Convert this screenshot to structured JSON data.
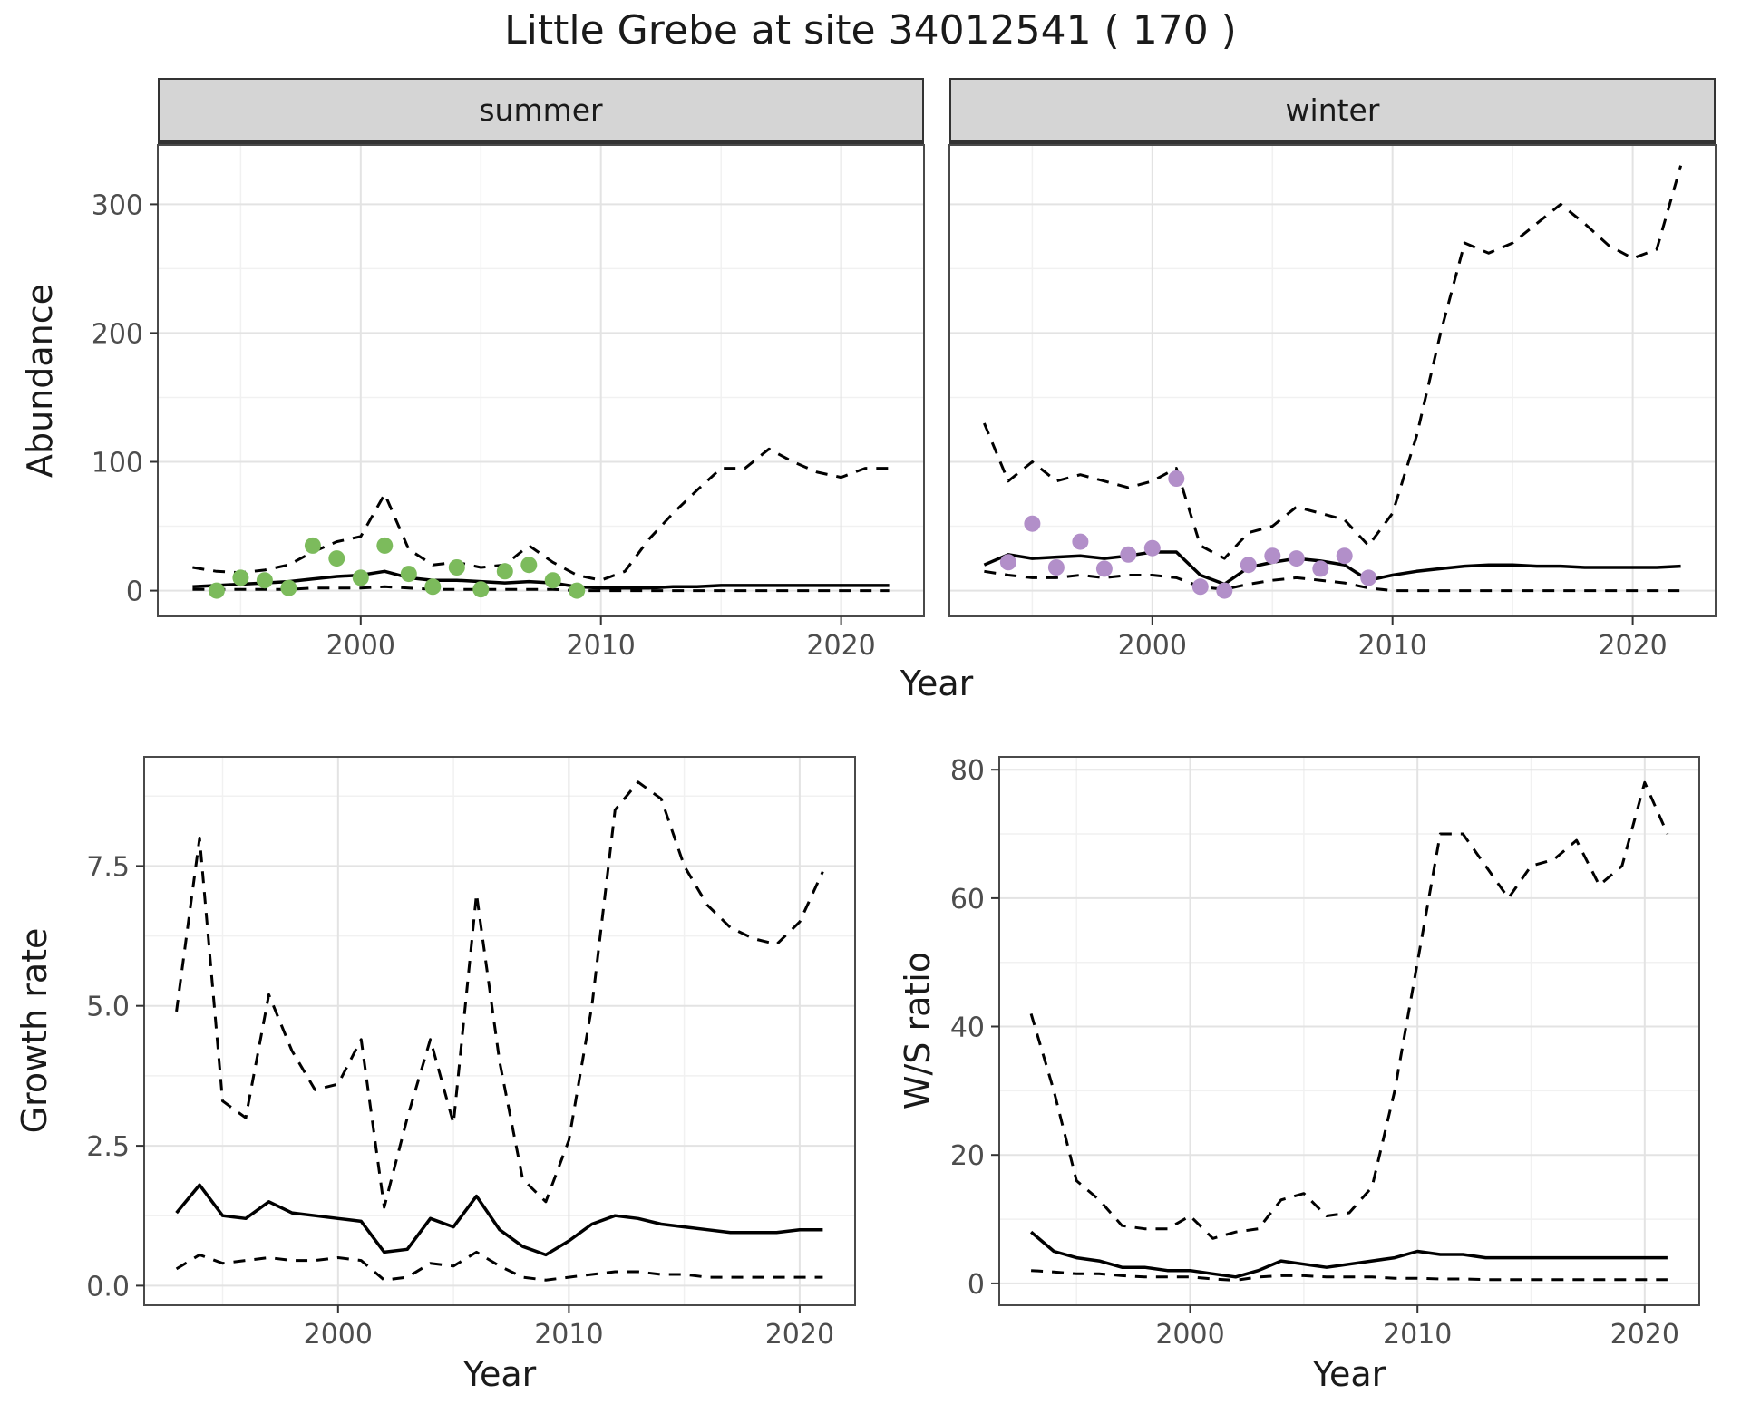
{
  "title": "Little Grebe at site 34012541 ( 170 )",
  "facets": [
    {
      "label": "summer"
    },
    {
      "label": "winter"
    }
  ],
  "axes": {
    "top_ylabel": "Abundance",
    "top_xlabel": "Year",
    "bottom_left_ylabel": "Growth rate",
    "bottom_left_xlabel": "Year",
    "bottom_right_ylabel": "W/S ratio",
    "bottom_right_xlabel": "Year"
  },
  "style": {
    "line_color": "#000000",
    "summer_point_color": "#7cbb5c",
    "winter_point_color": "#b28fc9",
    "strip_bg": "#d5d5d5",
    "grid_major": "#e3e3e3",
    "grid_minor": "#f1f1f1",
    "panel_border": "#4a4a4a",
    "tick_text": "#4d4d4d"
  },
  "chart_data": [
    {
      "id": "summer-abundance",
      "type": "line",
      "facet": "summer",
      "xlabel": "Year",
      "ylabel": "Abundance",
      "xlim": [
        1991.55,
        2023.45
      ],
      "ylim": [
        -20,
        346
      ],
      "xticks": [
        2000,
        2010,
        2020
      ],
      "xtick_labels": [
        "2000",
        "2010",
        "2020"
      ],
      "yticks": [
        0,
        100,
        200,
        300
      ],
      "ytick_labels": [
        "0",
        "100",
        "200",
        "300"
      ],
      "minor_xticks": [
        1995,
        2005,
        2015
      ],
      "minor_yticks": [
        50,
        150,
        250
      ],
      "show_y_labels": true,
      "series": [
        {
          "name": "upper-ci",
          "style": "dashed",
          "x": [
            1993,
            1994,
            1995,
            1996,
            1997,
            1998,
            1999,
            2000,
            2001,
            2002,
            2003,
            2004,
            2005,
            2006,
            2007,
            2008,
            2009,
            2010,
            2011,
            2012,
            2013,
            2014,
            2015,
            2016,
            2017,
            2018,
            2019,
            2020,
            2021,
            2022
          ],
          "y": [
            18,
            15,
            14,
            16,
            20,
            30,
            38,
            42,
            75,
            32,
            20,
            22,
            18,
            20,
            35,
            22,
            12,
            8,
            15,
            40,
            60,
            78,
            95,
            95,
            110,
            100,
            92,
            88,
            95,
            95
          ]
        },
        {
          "name": "lower-ci",
          "style": "dashed",
          "x": [
            1993,
            1994,
            1995,
            1996,
            1997,
            1998,
            1999,
            2000,
            2001,
            2002,
            2003,
            2004,
            2005,
            2006,
            2007,
            2008,
            2009,
            2010,
            2011,
            2012,
            2013,
            2014,
            2015,
            2016,
            2017,
            2018,
            2019,
            2020,
            2021,
            2022
          ],
          "y": [
            1,
            1,
            1,
            1,
            1,
            2,
            2,
            2,
            3,
            2,
            1,
            1,
            1,
            1,
            1,
            1,
            0,
            0,
            0,
            0,
            0,
            0,
            0,
            0,
            0,
            0,
            0,
            0,
            0,
            0
          ]
        },
        {
          "name": "fitted-index",
          "style": "solid",
          "x": [
            1993,
            1994,
            1995,
            1996,
            1997,
            1998,
            1999,
            2000,
            2001,
            2002,
            2003,
            2004,
            2005,
            2006,
            2007,
            2008,
            2009,
            2010,
            2011,
            2012,
            2013,
            2014,
            2015,
            2016,
            2017,
            2018,
            2019,
            2020,
            2021,
            2022
          ],
          "y": [
            3,
            4,
            5,
            6,
            7,
            9,
            11,
            12,
            15,
            10,
            8,
            8,
            7,
            6,
            7,
            6,
            3,
            2,
            2,
            2,
            3,
            3,
            4,
            4,
            4,
            4,
            4,
            4,
            4,
            4
          ]
        },
        {
          "name": "observed-counts",
          "style": "points",
          "color": "#7cbb5c",
          "x": [
            1994,
            1995,
            1996,
            1997,
            1998,
            1999,
            2000,
            2001,
            2002,
            2003,
            2004,
            2005,
            2006,
            2007,
            2008,
            2009
          ],
          "y": [
            0,
            10,
            8,
            2,
            35,
            25,
            10,
            35,
            13,
            3,
            18,
            1,
            15,
            20,
            8,
            0
          ]
        }
      ]
    },
    {
      "id": "winter-abundance",
      "type": "line",
      "facet": "winter",
      "xlabel": "Year",
      "ylabel": "Abundance",
      "xlim": [
        1991.55,
        2023.45
      ],
      "ylim": [
        -20,
        346
      ],
      "xticks": [
        2000,
        2010,
        2020
      ],
      "xtick_labels": [
        "2000",
        "2010",
        "2020"
      ],
      "yticks": [
        0,
        100,
        200,
        300
      ],
      "ytick_labels": [
        "0",
        "100",
        "200",
        "300"
      ],
      "minor_xticks": [
        1995,
        2005,
        2015
      ],
      "minor_yticks": [
        50,
        150,
        250
      ],
      "show_y_labels": false,
      "series": [
        {
          "name": "upper-ci",
          "style": "dashed",
          "x": [
            1993,
            1994,
            1995,
            1996,
            1997,
            1998,
            1999,
            2000,
            2001,
            2002,
            2003,
            2004,
            2005,
            2006,
            2007,
            2008,
            2009,
            2010,
            2011,
            2012,
            2013,
            2014,
            2015,
            2016,
            2017,
            2018,
            2019,
            2020,
            2021,
            2022
          ],
          "y": [
            130,
            85,
            100,
            85,
            90,
            85,
            80,
            85,
            95,
            35,
            25,
            45,
            50,
            65,
            60,
            55,
            35,
            60,
            120,
            200,
            270,
            262,
            270,
            285,
            300,
            285,
            268,
            258,
            265,
            330
          ]
        },
        {
          "name": "lower-ci",
          "style": "dashed",
          "x": [
            1993,
            1994,
            1995,
            1996,
            1997,
            1998,
            1999,
            2000,
            2001,
            2002,
            2003,
            2004,
            2005,
            2006,
            2007,
            2008,
            2009,
            2010,
            2011,
            2012,
            2013,
            2014,
            2015,
            2016,
            2017,
            2018,
            2019,
            2020,
            2021,
            2022
          ],
          "y": [
            15,
            12,
            10,
            10,
            12,
            10,
            12,
            12,
            10,
            3,
            1,
            5,
            8,
            10,
            8,
            6,
            2,
            0,
            0,
            0,
            0,
            0,
            0,
            0,
            0,
            0,
            0,
            0,
            0,
            0
          ]
        },
        {
          "name": "fitted-index",
          "style": "solid",
          "x": [
            1993,
            1994,
            1995,
            1996,
            1997,
            1998,
            1999,
            2000,
            2001,
            2002,
            2003,
            2004,
            2005,
            2006,
            2007,
            2008,
            2009,
            2010,
            2011,
            2012,
            2013,
            2014,
            2015,
            2016,
            2017,
            2018,
            2019,
            2020,
            2021,
            2022
          ],
          "y": [
            20,
            28,
            25,
            26,
            27,
            25,
            27,
            30,
            30,
            12,
            5,
            18,
            22,
            25,
            23,
            20,
            8,
            12,
            15,
            17,
            19,
            20,
            20,
            19,
            19,
            18,
            18,
            18,
            18,
            19
          ]
        },
        {
          "name": "observed-counts",
          "style": "points",
          "color": "#b28fc9",
          "x": [
            1994,
            1995,
            1996,
            1997,
            1998,
            1999,
            2000,
            2001,
            2002,
            2003,
            2004,
            2005,
            2006,
            2007,
            2008,
            2009
          ],
          "y": [
            22,
            52,
            18,
            38,
            17,
            28,
            33,
            87,
            3,
            0,
            20,
            27,
            25,
            17,
            27,
            10
          ]
        }
      ]
    },
    {
      "id": "growth-rate",
      "type": "line",
      "xlabel": "Year",
      "ylabel": "Growth rate",
      "xlim": [
        1991.6,
        2022.4
      ],
      "ylim": [
        -0.35,
        9.45
      ],
      "xticks": [
        2000,
        2010,
        2020
      ],
      "xtick_labels": [
        "2000",
        "2010",
        "2020"
      ],
      "yticks": [
        0,
        2.5,
        5,
        7.5
      ],
      "ytick_labels": [
        "0.0",
        "2.5",
        "5.0",
        "7.5"
      ],
      "minor_xticks": [
        1995,
        2005,
        2015
      ],
      "minor_yticks": [
        1.25,
        3.75,
        6.25,
        8.75
      ],
      "show_y_labels": true,
      "series": [
        {
          "name": "upper-ci",
          "style": "dashed",
          "x": [
            1993,
            1994,
            1995,
            1996,
            1997,
            1998,
            1999,
            2000,
            2001,
            2002,
            2003,
            2004,
            2005,
            2006,
            2007,
            2008,
            2009,
            2010,
            2011,
            2012,
            2013,
            2014,
            2015,
            2016,
            2017,
            2018,
            2019,
            2020,
            2021
          ],
          "y": [
            4.9,
            8.0,
            3.3,
            3.0,
            5.2,
            4.2,
            3.5,
            3.6,
            4.4,
            1.4,
            3.0,
            4.4,
            2.9,
            7.0,
            4.0,
            1.9,
            1.5,
            2.6,
            5.0,
            8.5,
            9.0,
            8.7,
            7.5,
            6.8,
            6.4,
            6.2,
            6.1,
            6.5,
            7.4
          ]
        },
        {
          "name": "lower-ci",
          "style": "dashed",
          "x": [
            1993,
            1994,
            1995,
            1996,
            1997,
            1998,
            1999,
            2000,
            2001,
            2002,
            2003,
            2004,
            2005,
            2006,
            2007,
            2008,
            2009,
            2010,
            2011,
            2012,
            2013,
            2014,
            2015,
            2016,
            2017,
            2018,
            2019,
            2020,
            2021
          ],
          "y": [
            0.3,
            0.55,
            0.4,
            0.45,
            0.5,
            0.45,
            0.45,
            0.5,
            0.45,
            0.1,
            0.15,
            0.4,
            0.35,
            0.6,
            0.35,
            0.15,
            0.1,
            0.15,
            0.2,
            0.25,
            0.25,
            0.2,
            0.2,
            0.15,
            0.15,
            0.15,
            0.15,
            0.15,
            0.15
          ]
        },
        {
          "name": "fitted-growth-rate",
          "style": "solid",
          "x": [
            1993,
            1994,
            1995,
            1996,
            1997,
            1998,
            1999,
            2000,
            2001,
            2002,
            2003,
            2004,
            2005,
            2006,
            2007,
            2008,
            2009,
            2010,
            2011,
            2012,
            2013,
            2014,
            2015,
            2016,
            2017,
            2018,
            2019,
            2020,
            2021
          ],
          "y": [
            1.3,
            1.8,
            1.25,
            1.2,
            1.5,
            1.3,
            1.25,
            1.2,
            1.15,
            0.6,
            0.65,
            1.2,
            1.05,
            1.6,
            1.0,
            0.7,
            0.55,
            0.8,
            1.1,
            1.25,
            1.2,
            1.1,
            1.05,
            1.0,
            0.95,
            0.95,
            0.95,
            1.0,
            1.0
          ]
        }
      ]
    },
    {
      "id": "ws-ratio",
      "type": "line",
      "xlabel": "Year",
      "ylabel": "W/S ratio",
      "xlim": [
        1991.6,
        2022.4
      ],
      "ylim": [
        -3.4,
        82
      ],
      "xticks": [
        2000,
        2010,
        2020
      ],
      "xtick_labels": [
        "2000",
        "2010",
        "2020"
      ],
      "yticks": [
        0,
        20,
        40,
        60,
        80
      ],
      "ytick_labels": [
        "0",
        "20",
        "40",
        "60",
        "80"
      ],
      "minor_xticks": [
        1995,
        2005,
        2015
      ],
      "minor_yticks": [
        10,
        30,
        50,
        70
      ],
      "show_y_labels": true,
      "series": [
        {
          "name": "upper-ci",
          "style": "dashed",
          "x": [
            1993,
            1994,
            1995,
            1996,
            1997,
            1998,
            1999,
            2000,
            2001,
            2002,
            2003,
            2004,
            2005,
            2006,
            2007,
            2008,
            2009,
            2010,
            2011,
            2012,
            2013,
            2014,
            2015,
            2016,
            2017,
            2018,
            2019,
            2020,
            2021
          ],
          "y": [
            42,
            30,
            16,
            13,
            9,
            8.5,
            8.5,
            10.5,
            7,
            8,
            8.5,
            13,
            14,
            10.5,
            11,
            15,
            30,
            50,
            70,
            70,
            65,
            60,
            65,
            66,
            69,
            62,
            65,
            78,
            70
          ]
        },
        {
          "name": "lower-ci",
          "style": "dashed",
          "x": [
            1993,
            1994,
            1995,
            1996,
            1997,
            1998,
            1999,
            2000,
            2001,
            2002,
            2003,
            2004,
            2005,
            2006,
            2007,
            2008,
            2009,
            2010,
            2011,
            2012,
            2013,
            2014,
            2015,
            2016,
            2017,
            2018,
            2019,
            2020,
            2021
          ],
          "y": [
            2,
            1.8,
            1.5,
            1.5,
            1.2,
            1,
            1,
            1,
            0.7,
            0.5,
            1,
            1.2,
            1.2,
            1,
            1,
            1,
            0.8,
            0.8,
            0.7,
            0.7,
            0.6,
            0.6,
            0.6,
            0.6,
            0.6,
            0.6,
            0.6,
            0.6,
            0.6
          ]
        },
        {
          "name": "fitted-ws-ratio",
          "style": "solid",
          "x": [
            1993,
            1994,
            1995,
            1996,
            1997,
            1998,
            1999,
            2000,
            2001,
            2002,
            2003,
            2004,
            2005,
            2006,
            2007,
            2008,
            2009,
            2010,
            2011,
            2012,
            2013,
            2014,
            2015,
            2016,
            2017,
            2018,
            2019,
            2020,
            2021
          ],
          "y": [
            8,
            5,
            4,
            3.5,
            2.5,
            2.5,
            2,
            2,
            1.5,
            1,
            2,
            3.5,
            3,
            2.5,
            3,
            3.5,
            4,
            5,
            4.5,
            4.5,
            4,
            4,
            4,
            4,
            4,
            4,
            4,
            4,
            4
          ]
        }
      ]
    }
  ]
}
